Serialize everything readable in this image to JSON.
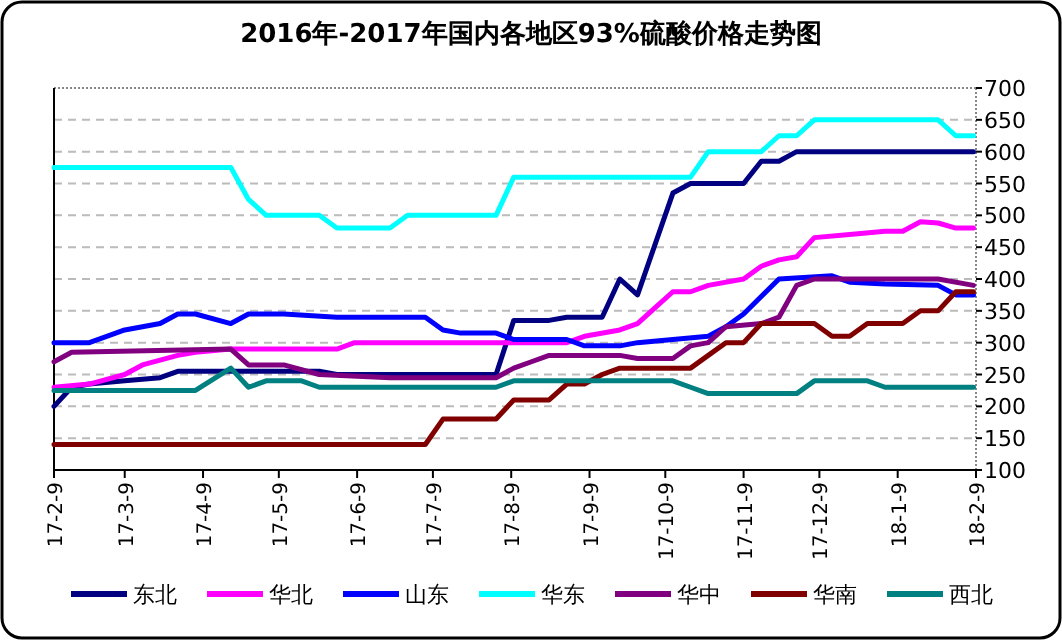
{
  "chart_data": {
    "type": "line",
    "title": "2016年-2017年国内各地区93%硫酸价格走势图",
    "xlim": [
      "2017-02-09",
      "2018-02-09"
    ],
    "xticks": [
      {
        "value": "2017-02-09",
        "label": "17-2-9"
      },
      {
        "value": "2017-03-09",
        "label": "17-3-9"
      },
      {
        "value": "2017-04-09",
        "label": "17-4-9"
      },
      {
        "value": "2017-05-09",
        "label": "17-5-9"
      },
      {
        "value": "2017-06-09",
        "label": "17-6-9"
      },
      {
        "value": "2017-07-09",
        "label": "17-7-9"
      },
      {
        "value": "2017-08-09",
        "label": "17-8-9"
      },
      {
        "value": "2017-09-09",
        "label": "17-9-9"
      },
      {
        "value": "2017-10-09",
        "label": "17-10-9"
      },
      {
        "value": "2017-11-09",
        "label": "17-11-9"
      },
      {
        "value": "2017-12-09",
        "label": "17-12-9"
      },
      {
        "value": "2018-01-09",
        "label": "18-1-9"
      },
      {
        "value": "2018-02-09",
        "label": "18-2-9"
      }
    ],
    "ylim": [
      100,
      700
    ],
    "yticks": [
      100,
      150,
      200,
      250,
      300,
      350,
      400,
      450,
      500,
      550,
      600,
      650,
      700
    ],
    "grid": "y",
    "legend": "bottom",
    "series": [
      {
        "name": "东北",
        "color": "#000080",
        "x": [
          "2017-02-09",
          "2017-02-16",
          "2017-02-23",
          "2017-03-09",
          "2017-03-23",
          "2017-03-30",
          "2017-05-25",
          "2017-06-01",
          "2017-08-03",
          "2017-08-10",
          "2017-08-24",
          "2017-08-31",
          "2017-09-14",
          "2017-09-21",
          "2017-09-28",
          "2017-10-12",
          "2017-10-19",
          "2017-11-09",
          "2017-11-16",
          "2017-11-23",
          "2017-11-30",
          "2018-02-08"
        ],
        "values": [
          200,
          230,
          235,
          240,
          245,
          255,
          255,
          250,
          250,
          335,
          335,
          340,
          340,
          400,
          375,
          535,
          550,
          550,
          585,
          585,
          600,
          600
        ]
      },
      {
        "name": "华北",
        "color": "#ff00ff",
        "x": [
          "2017-02-09",
          "2017-02-23",
          "2017-03-09",
          "2017-03-16",
          "2017-03-30",
          "2017-04-06",
          "2017-04-20",
          "2017-06-01",
          "2017-06-08",
          "2017-08-31",
          "2017-09-07",
          "2017-09-21",
          "2017-09-28",
          "2017-10-05",
          "2017-10-12",
          "2017-10-19",
          "2017-10-26",
          "2017-11-09",
          "2017-11-16",
          "2017-11-23",
          "2017-11-30",
          "2017-12-07",
          "2017-12-21",
          "2018-01-04",
          "2018-01-11",
          "2018-01-18",
          "2018-01-25",
          "2018-02-01",
          "2018-02-08"
        ],
        "values": [
          230,
          235,
          250,
          265,
          280,
          285,
          290,
          290,
          300,
          300,
          310,
          320,
          330,
          355,
          380,
          380,
          390,
          400,
          420,
          430,
          435,
          465,
          470,
          475,
          475,
          490,
          488,
          480,
          480
        ]
      },
      {
        "name": "山东",
        "color": "#0000ff",
        "x": [
          "2017-02-09",
          "2017-02-23",
          "2017-03-09",
          "2017-03-23",
          "2017-03-30",
          "2017-04-06",
          "2017-04-20",
          "2017-04-27",
          "2017-05-11",
          "2017-06-01",
          "2017-07-06",
          "2017-07-13",
          "2017-07-20",
          "2017-08-03",
          "2017-08-10",
          "2017-08-31",
          "2017-09-07",
          "2017-09-21",
          "2017-09-28",
          "2017-10-26",
          "2017-11-02",
          "2017-11-09",
          "2017-11-23",
          "2017-12-14",
          "2017-12-21",
          "2018-01-04",
          "2018-01-25",
          "2018-02-01",
          "2018-02-08"
        ],
        "values": [
          300,
          300,
          320,
          330,
          345,
          345,
          330,
          345,
          345,
          340,
          340,
          320,
          315,
          315,
          305,
          305,
          295,
          295,
          300,
          310,
          325,
          345,
          400,
          405,
          395,
          392,
          390,
          375,
          375
        ]
      },
      {
        "name": "华东",
        "color": "#00ffff",
        "x": [
          "2017-02-09",
          "2017-04-20",
          "2017-04-27",
          "2017-05-04",
          "2017-05-25",
          "2017-06-01",
          "2017-06-22",
          "2017-06-29",
          "2017-08-03",
          "2017-08-10",
          "2017-10-19",
          "2017-10-26",
          "2017-11-16",
          "2017-11-23",
          "2017-11-30",
          "2017-12-07",
          "2018-01-25",
          "2018-02-01",
          "2018-02-08"
        ],
        "values": [
          575,
          575,
          525,
          500,
          500,
          480,
          480,
          500,
          500,
          560,
          560,
          600,
          600,
          625,
          625,
          650,
          650,
          625,
          625
        ]
      },
      {
        "name": "华中",
        "color": "#800080",
        "x": [
          "2017-02-09",
          "2017-02-16",
          "2017-04-20",
          "2017-04-27",
          "2017-05-11",
          "2017-05-25",
          "2017-06-22",
          "2017-08-03",
          "2017-08-10",
          "2017-08-17",
          "2017-08-24",
          "2017-09-21",
          "2017-09-28",
          "2017-10-12",
          "2017-10-19",
          "2017-10-26",
          "2017-11-02",
          "2017-11-16",
          "2017-11-23",
          "2017-11-30",
          "2017-12-07",
          "2018-01-25",
          "2018-02-08"
        ],
        "values": [
          270,
          285,
          290,
          265,
          265,
          250,
          245,
          245,
          260,
          270,
          280,
          280,
          275,
          275,
          295,
          300,
          325,
          330,
          340,
          390,
          400,
          400,
          390
        ]
      },
      {
        "name": "华南",
        "color": "#800000",
        "x": [
          "2017-02-09",
          "2017-07-06",
          "2017-07-13",
          "2017-08-03",
          "2017-08-10",
          "2017-08-24",
          "2017-08-31",
          "2017-09-07",
          "2017-09-14",
          "2017-09-21",
          "2017-10-19",
          "2017-10-26",
          "2017-11-02",
          "2017-11-09",
          "2017-11-16",
          "2017-12-07",
          "2017-12-14",
          "2017-12-21",
          "2017-12-28",
          "2018-01-11",
          "2018-01-18",
          "2018-01-25",
          "2018-02-01",
          "2018-02-08"
        ],
        "values": [
          140,
          140,
          180,
          180,
          210,
          210,
          235,
          235,
          250,
          260,
          260,
          280,
          300,
          300,
          330,
          330,
          310,
          310,
          330,
          330,
          350,
          350,
          380,
          380
        ]
      },
      {
        "name": "西北",
        "color": "#008080",
        "x": [
          "2017-02-09",
          "2017-04-06",
          "2017-04-20",
          "2017-04-27",
          "2017-05-04",
          "2017-05-18",
          "2017-05-25",
          "2017-08-03",
          "2017-08-10",
          "2017-10-12",
          "2017-10-19",
          "2017-10-26",
          "2017-11-30",
          "2017-12-07",
          "2017-12-28",
          "2018-01-04",
          "2018-02-08"
        ],
        "values": [
          225,
          225,
          260,
          230,
          240,
          240,
          230,
          230,
          240,
          240,
          230,
          220,
          220,
          240,
          240,
          230,
          230
        ]
      }
    ]
  }
}
